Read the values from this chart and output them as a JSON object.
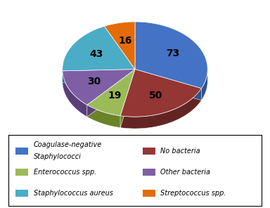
{
  "labels": [
    "Coagulase-negative\nStaphylococci",
    "No bacteria",
    "Enterococcus spp.",
    "Other bacteria",
    "Staphylococcus aureus",
    "Streptococcus spp."
  ],
  "values": [
    73,
    50,
    19,
    30,
    43,
    16
  ],
  "colors": [
    "#4472C4",
    "#943634",
    "#9BBB59",
    "#7E5FA6",
    "#4BACC6",
    "#E36C09"
  ],
  "colors_dark": [
    "#2F528F",
    "#632523",
    "#6B8328",
    "#5A3E78",
    "#1F7391",
    "#9F4B04"
  ],
  "background_color": "#ffffff",
  "legend_col1": [
    "Coagulase-negative\nStaphylococci",
    "Enterococcus spp.",
    "Staphylococcus aureus"
  ],
  "legend_col2": [
    "No bacteria",
    "Other bacteria",
    "Streptococcus spp."
  ],
  "legend_colors_col1": [
    "#4472C4",
    "#9BBB59",
    "#4BACC6"
  ],
  "legend_colors_col2": [
    "#943634",
    "#7E5FA6",
    "#E36C09"
  ]
}
